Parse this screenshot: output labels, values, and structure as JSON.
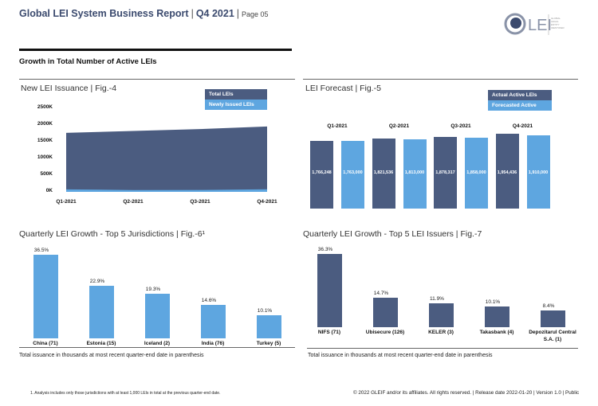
{
  "header": {
    "title": "Global LEI System Business Report",
    "quarter": "Q4 2021",
    "page": "Page 05",
    "logo_text": "LEI",
    "logo_tagline": "GLOBAL LEGAL ENTITY IDENTIFIER FOUNDATION"
  },
  "section_title": "Growth in Total Number of Active LEIs",
  "colors": {
    "dark": "#4b5c80",
    "light": "#5ea6e0"
  },
  "chart_data": [
    {
      "type": "area",
      "title": "New LEI Issuance | Fig.-4",
      "categories": [
        "Q1-2021",
        "Q2-2021",
        "Q3-2021",
        "Q4-2021"
      ],
      "yticks": [
        "2500K",
        "2000K",
        "1500K",
        "1000K",
        "500K",
        "0K"
      ],
      "ylim": [
        0,
        2500000
      ],
      "series": [
        {
          "name": "Total LEIs",
          "values": [
            1766248,
            1821536,
            1878317,
            1954436
          ]
        },
        {
          "name": "Newly Issued LEIs",
          "values": [
            75000,
            55000,
            57000,
            76000
          ]
        }
      ],
      "legend": "top-right"
    },
    {
      "type": "bar",
      "title": "LEI Forecast | Fig.-5",
      "categories": [
        "Q1-2021",
        "Q2-2021",
        "Q3-2021",
        "Q4-2021"
      ],
      "series": [
        {
          "name": "Actual Active LEIs",
          "values": [
            1766248,
            1821536,
            1878317,
            1954436
          ],
          "labels": [
            "1,766,248",
            "1,821,536",
            "1,878,317",
            "1,954,436"
          ]
        },
        {
          "name": "Forecasted Active LEIs",
          "values": [
            1763000,
            1813000,
            1858000,
            1910000
          ],
          "labels": [
            "1,763,000",
            "1,813,000",
            "1,858,000",
            "1,910,000"
          ]
        }
      ],
      "legend": "top-right"
    },
    {
      "type": "bar",
      "title": "Quarterly LEI Growth - Top 5 Jurisdictions | Fig.-6¹",
      "categories": [
        "China (71)",
        "Estonia (15)",
        "Iceland (2)",
        "India (76)",
        "Turkey (5)"
      ],
      "values": [
        36.5,
        22.9,
        19.3,
        14.6,
        10.1
      ],
      "labels": [
        "36.5%",
        "22.9%",
        "19.3%",
        "14.6%",
        "10.1%"
      ],
      "note": "Total issuance in thousands at most recent quarter-end date in parenthesis"
    },
    {
      "type": "bar",
      "title": "Quarterly LEI Growth - Top 5 LEI Issuers | Fig.-7",
      "categories": [
        "NIFS (71)",
        "Ubisecure (126)",
        "KELER (3)",
        "Takasbank (4)",
        "Depozitarul Central S.A. (1)"
      ],
      "values": [
        36.3,
        14.7,
        11.9,
        10.1,
        8.4
      ],
      "labels": [
        "36.3%",
        "14.7%",
        "11.9%",
        "10.1%",
        "8.4%"
      ],
      "note": "Total issuance in thousands at most recent quarter-end date in parenthesis"
    }
  ],
  "footer": {
    "footnote": "1. Analysis includes only those jurisdictions with at least 1,000 LEIs in total at the previous quarter-end date.",
    "rights": "© 2022 GLEIF and/or its affiliates. All rights reserved.  |  Release date 2022-01-20  |  Version 1.0  |  Public"
  }
}
